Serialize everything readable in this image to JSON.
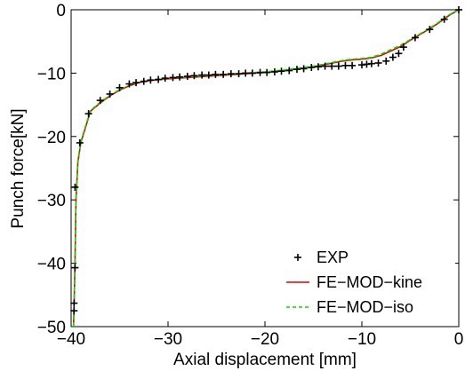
{
  "chart_data": {
    "type": "line",
    "xlabel": "Axial displacement [mm]",
    "ylabel": "Punch force[kN]",
    "xlim": [
      -40,
      0
    ],
    "ylim": [
      -50,
      0
    ],
    "xticks": [
      -40,
      -30,
      -20,
      -10,
      0
    ],
    "yticks": [
      0,
      -10,
      -20,
      -30,
      -40,
      -50
    ],
    "xtick_labels": [
      "−40",
      "−30",
      "−20",
      "−10",
      "0"
    ],
    "ytick_labels": [
      "0",
      "−10",
      "−20",
      "−30",
      "−40",
      "−50"
    ],
    "grid": false,
    "legend_position": "bottom-right",
    "series": [
      {
        "name": "EXP",
        "style": "markers",
        "marker": "+",
        "color": "#000000",
        "x": [
          0,
          -1.5,
          -3,
          -4.5,
          -5.7,
          -6.2,
          -6.8,
          -7.5,
          -8.3,
          -9,
          -9.5,
          -10,
          -11,
          -11.7,
          -12.4,
          -13.1,
          -13.8,
          -14.5,
          -15.2,
          -16,
          -16.7,
          -17.5,
          -18.3,
          -19,
          -19.8,
          -20.5,
          -21.3,
          -22,
          -22.7,
          -23.5,
          -24.3,
          -25.1,
          -25.8,
          -26.5,
          -27.3,
          -28,
          -28.8,
          -29.5,
          -30.3,
          -31,
          -31.8,
          -32.5,
          -33.3,
          -34,
          -35,
          -36,
          -37,
          -38.2,
          -39.1,
          -39.6,
          -39.6,
          -39.7,
          -39.7
        ],
        "y": [
          0,
          -1.5,
          -3.1,
          -4.4,
          -5.9,
          -6.9,
          -7.5,
          -8.1,
          -8.4,
          -8.5,
          -8.6,
          -8.7,
          -8.8,
          -8.8,
          -8.9,
          -8.9,
          -8.9,
          -9.0,
          -9.1,
          -9.3,
          -9.4,
          -9.6,
          -9.7,
          -9.8,
          -9.9,
          -9.9,
          -10.0,
          -10.0,
          -10.1,
          -10.1,
          -10.2,
          -10.2,
          -10.3,
          -10.3,
          -10.4,
          -10.5,
          -10.6,
          -10.7,
          -10.8,
          -11.0,
          -11.1,
          -11.3,
          -11.5,
          -11.7,
          -12.3,
          -13.3,
          -14.3,
          -16.4,
          -21,
          -28,
          -40.7,
          -46.3,
          -47.5
        ]
      },
      {
        "name": "FE−MOD−kine",
        "style": "solid",
        "color": "#e00000",
        "x": [
          0,
          -1,
          -2,
          -3,
          -4,
          -5,
          -6,
          -7,
          -8,
          -9,
          -10,
          -11,
          -12,
          -13,
          -14,
          -15,
          -16,
          -18,
          -20,
          -22,
          -24,
          -26,
          -28,
          -30,
          -32,
          -33,
          -34,
          -35,
          -36,
          -37,
          -38,
          -38.5,
          -39,
          -39.3,
          -39.5,
          -39.6,
          -39.7,
          -39.75
        ],
        "y": [
          0,
          -0.9,
          -2.0,
          -3.0,
          -3.9,
          -4.8,
          -5.8,
          -6.5,
          -7.2,
          -7.6,
          -7.8,
          -7.9,
          -8.1,
          -8.4,
          -8.7,
          -9.0,
          -9.2,
          -9.6,
          -9.9,
          -10.1,
          -10.3,
          -10.5,
          -10.7,
          -10.9,
          -11.2,
          -11.5,
          -12.0,
          -12.7,
          -13.6,
          -14.7,
          -16.0,
          -18.5,
          -21.0,
          -24.0,
          -30.0,
          -40.0,
          -47.0,
          -50.0
        ]
      },
      {
        "name": "FE−MOD−iso",
        "style": "dashed",
        "color": "#00dd00",
        "x": [
          0,
          -1,
          -2,
          -3,
          -4,
          -5,
          -6,
          -7,
          -8,
          -9,
          -10,
          -11,
          -12,
          -13,
          -14,
          -15,
          -16,
          -18,
          -20,
          -22,
          -24,
          -26,
          -28,
          -30,
          -32,
          -33,
          -34,
          -35,
          -36,
          -37,
          -38,
          -38.5,
          -39,
          -39.3,
          -39.5,
          -39.6,
          -39.7,
          -39.75
        ],
        "y": [
          0,
          -0.8,
          -1.9,
          -2.9,
          -3.8,
          -4.7,
          -5.6,
          -6.3,
          -7.0,
          -7.5,
          -7.7,
          -7.8,
          -8.0,
          -8.3,
          -8.6,
          -8.9,
          -9.1,
          -9.5,
          -9.8,
          -10.0,
          -10.2,
          -10.4,
          -10.6,
          -10.8,
          -11.1,
          -11.4,
          -11.9,
          -12.6,
          -13.5,
          -14.6,
          -15.9,
          -18.3,
          -20.8,
          -23.8,
          -29.8,
          -39.8,
          -46.8,
          -50.0
        ]
      }
    ]
  }
}
